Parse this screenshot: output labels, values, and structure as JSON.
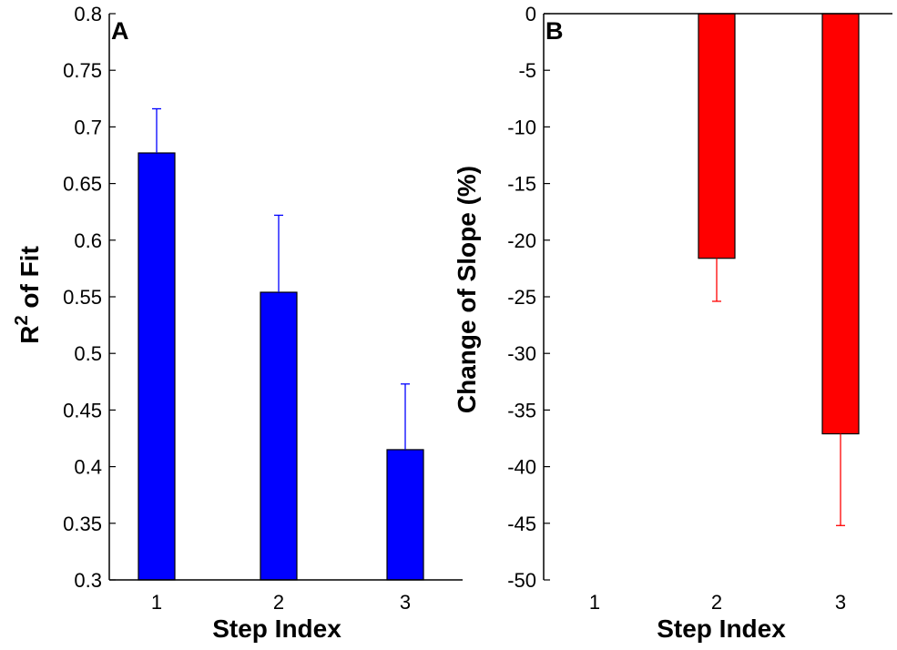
{
  "chart_data": [
    {
      "panel": "A",
      "type": "bar",
      "title": "",
      "xlabel": "Step Index",
      "ylabel_main": "R",
      "ylabel_sup": "2",
      "ylabel_rest": " of Fit",
      "categories": [
        "1",
        "2",
        "3"
      ],
      "values": [
        0.677,
        0.554,
        0.415
      ],
      "errors": [
        0.039,
        0.068,
        0.058
      ],
      "error_direction": "up",
      "ylim": [
        0.3,
        0.8
      ],
      "yticks": [
        "0.3",
        "0.35",
        "0.4",
        "0.45",
        "0.5",
        "0.55",
        "0.6",
        "0.65",
        "0.7",
        "0.75",
        "0.8"
      ],
      "bar_color": "#0000ff",
      "error_color": "#0000ff"
    },
    {
      "panel": "B",
      "type": "bar",
      "title": "",
      "xlabel": "Step Index",
      "ylabel": "Change of Slope (%)",
      "categories": [
        "1",
        "2",
        "3"
      ],
      "values": [
        0,
        -21.6,
        -37.1
      ],
      "errors": [
        0,
        3.8,
        8.1
      ],
      "error_direction": "down",
      "ylim": [
        -50,
        0
      ],
      "yticks": [
        "-50",
        "-45",
        "-40",
        "-35",
        "-30",
        "-25",
        "-20",
        "-15",
        "-10",
        "-5",
        "0"
      ],
      "bar_color": "#ff0000",
      "error_color": "#ff0000"
    }
  ]
}
